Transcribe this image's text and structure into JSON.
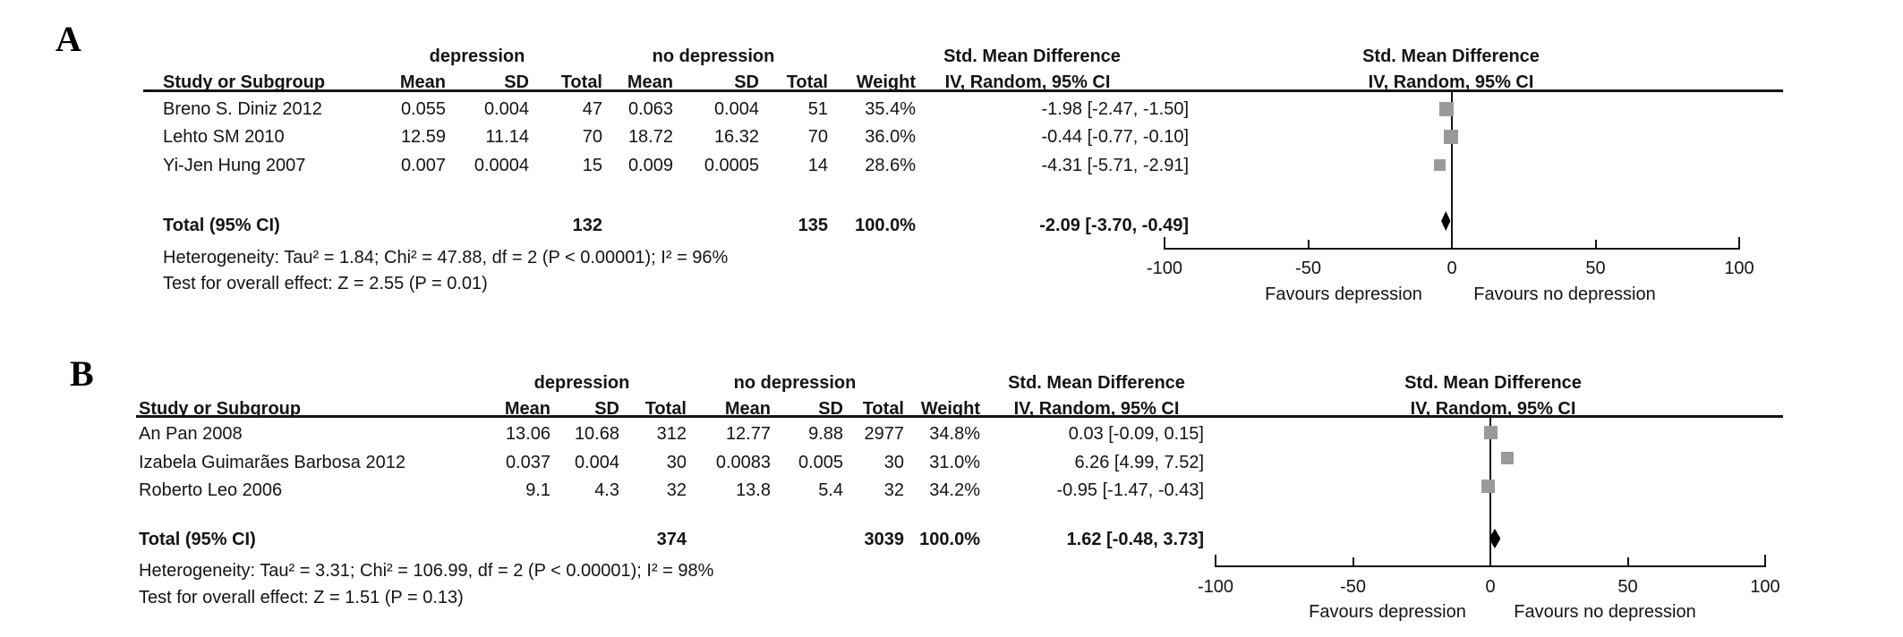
{
  "chart_data": {
    "type": "forest",
    "panels": [
      {
        "label": "A",
        "group_headers": {
          "exp": "depression",
          "ctrl": "no depression",
          "effect": "Std. Mean Difference",
          "plot": "Std. Mean Difference"
        },
        "subheaders": {
          "study": "Study or Subgroup",
          "mean": "Mean",
          "sd": "SD",
          "total": "Total",
          "weight": "Weight",
          "iv": "IV, Random, 95% CI",
          "plot_iv": "IV, Random, 95% CI"
        },
        "studies": [
          {
            "name": "Breno S. Diniz 2012",
            "mean1": "0.055",
            "sd1": "0.004",
            "total1": "47",
            "mean2": "0.063",
            "sd2": "0.004",
            "total2": "51",
            "weight": "35.4%",
            "ci_text": "-1.98 [-2.47, -1.50]",
            "smd": -1.98,
            "lo": -2.47,
            "hi": -1.5,
            "weight_pct": 35.4
          },
          {
            "name": "Lehto SM 2010",
            "mean1": "12.59",
            "sd1": "11.14",
            "total1": "70",
            "mean2": "18.72",
            "sd2": "16.32",
            "total2": "70",
            "weight": "36.0%",
            "ci_text": "-0.44 [-0.77, -0.10]",
            "smd": -0.44,
            "lo": -0.77,
            "hi": -0.1,
            "weight_pct": 36.0
          },
          {
            "name": "Yi-Jen Hung 2007",
            "mean1": "0.007",
            "sd1": "0.0004",
            "total1": "15",
            "mean2": "0.009",
            "sd2": "0.0005",
            "total2": "14",
            "weight": "28.6%",
            "ci_text": "-4.31 [-5.71, -2.91]",
            "smd": -4.31,
            "lo": -5.71,
            "hi": -2.91,
            "weight_pct": 28.6
          }
        ],
        "total": {
          "label": "Total (95% CI)",
          "total1": "132",
          "total2": "135",
          "weight": "100.0%",
          "ci_text": "-2.09 [-3.70, -0.49]",
          "smd": -2.09,
          "lo": -3.7,
          "hi": -0.49
        },
        "heterogeneity": "Heterogeneity: Tau² = 1.84; Chi² = 47.88, df = 2 (P < 0.00001); I² = 96%",
        "overall_test": "Test for overall effect: Z = 2.55 (P = 0.01)",
        "axis": {
          "min": -100,
          "max": 100,
          "tick_values": [
            -100,
            -50,
            0,
            50,
            100
          ],
          "tick_labels": [
            "-100",
            "-50",
            "0",
            "50",
            "100"
          ]
        },
        "favours_left": "Favours depression",
        "favours_right": "Favours no depression"
      },
      {
        "label": "B",
        "group_headers": {
          "exp": "depression",
          "ctrl": "no depression",
          "effect": "Std. Mean Difference",
          "plot": "Std. Mean Difference"
        },
        "subheaders": {
          "study": "Study or Subgroup",
          "mean": "Mean",
          "sd": "SD",
          "total": "Total",
          "weight": "Weight",
          "iv": "IV, Random, 95% CI",
          "plot_iv": "IV, Random, 95% CI"
        },
        "studies": [
          {
            "name": "An Pan 2008",
            "mean1": "13.06",
            "sd1": "10.68",
            "total1": "312",
            "mean2": "12.77",
            "sd2": "9.88",
            "total2": "2977",
            "weight": "34.8%",
            "ci_text": "0.03 [-0.09, 0.15]",
            "smd": 0.03,
            "lo": -0.09,
            "hi": 0.15,
            "weight_pct": 34.8
          },
          {
            "name": "Izabela Guimarães Barbosa 2012",
            "mean1": "0.037",
            "sd1": "0.004",
            "total1": "30",
            "mean2": "0.0083",
            "sd2": "0.005",
            "total2": "30",
            "weight": "31.0%",
            "ci_text": "6.26 [4.99, 7.52]",
            "smd": 6.26,
            "lo": 4.99,
            "hi": 7.52,
            "weight_pct": 31.0
          },
          {
            "name": "Roberto Leo 2006",
            "mean1": "9.1",
            "sd1": "4.3",
            "total1": "32",
            "mean2": "13.8",
            "sd2": "5.4",
            "total2": "32",
            "weight": "34.2%",
            "ci_text": "-0.95 [-1.47, -0.43]",
            "smd": -0.95,
            "lo": -1.47,
            "hi": -0.43,
            "weight_pct": 34.2
          }
        ],
        "total": {
          "label": "Total (95% CI)",
          "total1": "374",
          "total2": "3039",
          "weight": "100.0%",
          "ci_text": "1.62 [-0.48, 3.73]",
          "smd": 1.62,
          "lo": -0.48,
          "hi": 3.73
        },
        "heterogeneity": "Heterogeneity: Tau² = 3.31; Chi² = 106.99, df = 2 (P < 0.00001); I² = 98%",
        "overall_test": "Test for overall effect: Z = 1.51 (P = 0.13)",
        "axis": {
          "min": -100,
          "max": 100,
          "tick_values": [
            -100,
            -50,
            0,
            50,
            100
          ],
          "tick_labels": [
            "-100",
            "-50",
            "0",
            "50",
            "100"
          ]
        },
        "favours_left": "Favours depression",
        "favours_right": "Favours no depression"
      }
    ]
  },
  "colors": {
    "marker": "#9a9a9a",
    "diamond": "#000000",
    "line": "#141414",
    "text": "#141414",
    "background": "#ffffff"
  }
}
